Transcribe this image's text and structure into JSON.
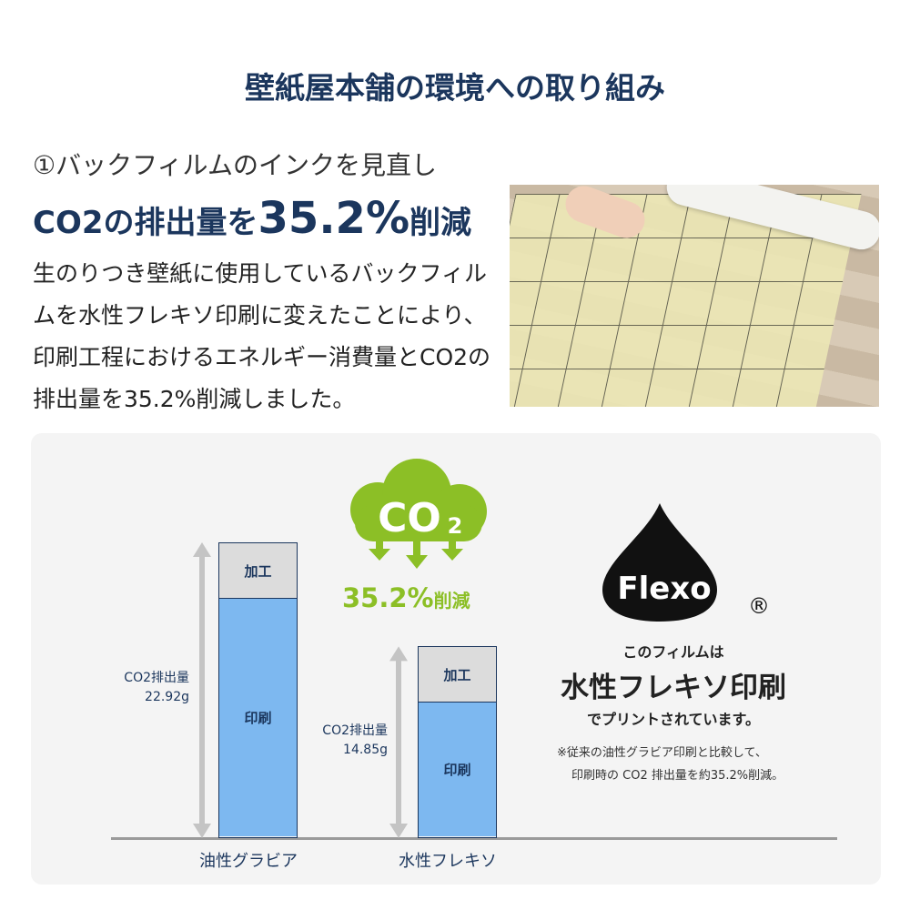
{
  "title": "壁紙屋本舗の環境への取り組み",
  "section": {
    "subtitle": "①バックフィルムのインクを見直し",
    "headline_pre": "CO2の排出量を",
    "headline_value": "35.2%",
    "headline_post": "削減",
    "paragraph": "生のりつき壁紙に使用しているバックフィルムを水性フレキソ印刷に変えたことにより、印刷工程におけるエネルギー消費量とCO2の排出量を35.2%削減しました。"
  },
  "chart_data": {
    "type": "bar",
    "categories": [
      "油性グラビア",
      "水性フレキソ"
    ],
    "segments": [
      "印刷",
      "加工"
    ],
    "totals_label": [
      "CO2排出量",
      "CO2排出量"
    ],
    "totals_text": [
      "22.92g",
      "14.85g"
    ],
    "values": [
      22.92,
      14.85
    ]
  },
  "badge": {
    "co2": "CO2",
    "co2_main": "CO",
    "co2_sub": "2",
    "reduction": "35.2%",
    "reduction_suffix": "削減",
    "color": "#8cbf26"
  },
  "flexo": {
    "logo": "Flexo",
    "registered": "®",
    "line1": "このフィルムは",
    "line2": "水性フレキソ印刷",
    "line3": "でプリントされています。",
    "note1": "※従来の油性グラビア印刷と比較して、",
    "note2": "印刷時の CO2 排出量を約35.2%削減。"
  },
  "colors": {
    "navy": "#1b365d",
    "bar": "#7db8f0",
    "green": "#8cbf26"
  }
}
